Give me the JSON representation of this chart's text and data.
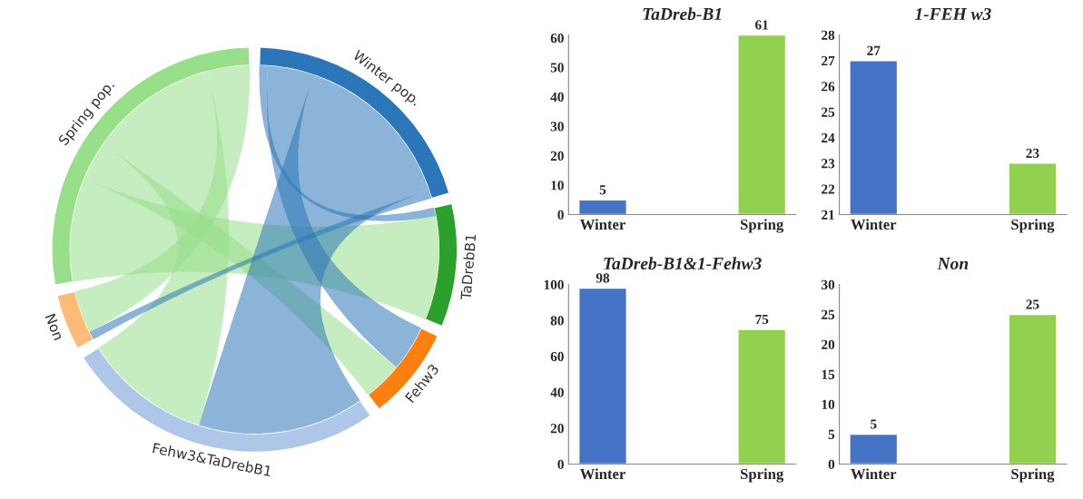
{
  "chart_data": [
    {
      "type": "other",
      "categories": [
        "Winter pop.",
        "TaDrebB1",
        "Fehw3",
        "Fehw3&TaDrebB1",
        "Non",
        "Spring pop."
      ],
      "colors": [
        "#2b76b8",
        "#2ca02c",
        "#ff7f0e",
        "#aec7e8",
        "#ffbb78",
        "#98df8a"
      ]
    },
    {
      "type": "bar",
      "title": "TaDreb-B1",
      "categories": [
        "Winter",
        "Spring"
      ],
      "values": [
        5,
        61
      ],
      "colors": [
        "#4472c4",
        "#92d050"
      ],
      "ylim": [
        0,
        61
      ],
      "yticks": [
        0,
        10,
        20,
        30,
        40,
        50,
        60
      ],
      "data_labels": true,
      "grid": false,
      "legend": false
    },
    {
      "type": "bar",
      "title": "1-FEH w3",
      "categories": [
        "Winter",
        "Spring"
      ],
      "values": [
        27,
        23
      ],
      "colors": [
        "#4472c4",
        "#92d050"
      ],
      "ylim": [
        21,
        28
      ],
      "yticks": [
        21,
        22,
        23,
        24,
        25,
        26,
        27,
        28
      ],
      "data_labels": true,
      "grid": false,
      "legend": false
    },
    {
      "type": "bar",
      "title": "TaDreb-B1&1-Fehw3",
      "categories": [
        "Winter",
        "Spring"
      ],
      "values": [
        98,
        75
      ],
      "colors": [
        "#4472c4",
        "#92d050"
      ],
      "ylim": [
        0,
        100
      ],
      "yticks": [
        0,
        20,
        40,
        60,
        80,
        100
      ],
      "data_labels": true,
      "grid": false,
      "legend": false
    },
    {
      "type": "bar",
      "title": "Non",
      "categories": [
        "Winter",
        "Spring"
      ],
      "values": [
        5,
        25
      ],
      "colors": [
        "#4472c4",
        "#92d050"
      ],
      "ylim": [
        0,
        30
      ],
      "yticks": [
        0,
        5,
        10,
        15,
        20,
        25,
        30
      ],
      "data_labels": true,
      "grid": false,
      "legend": false
    }
  ]
}
